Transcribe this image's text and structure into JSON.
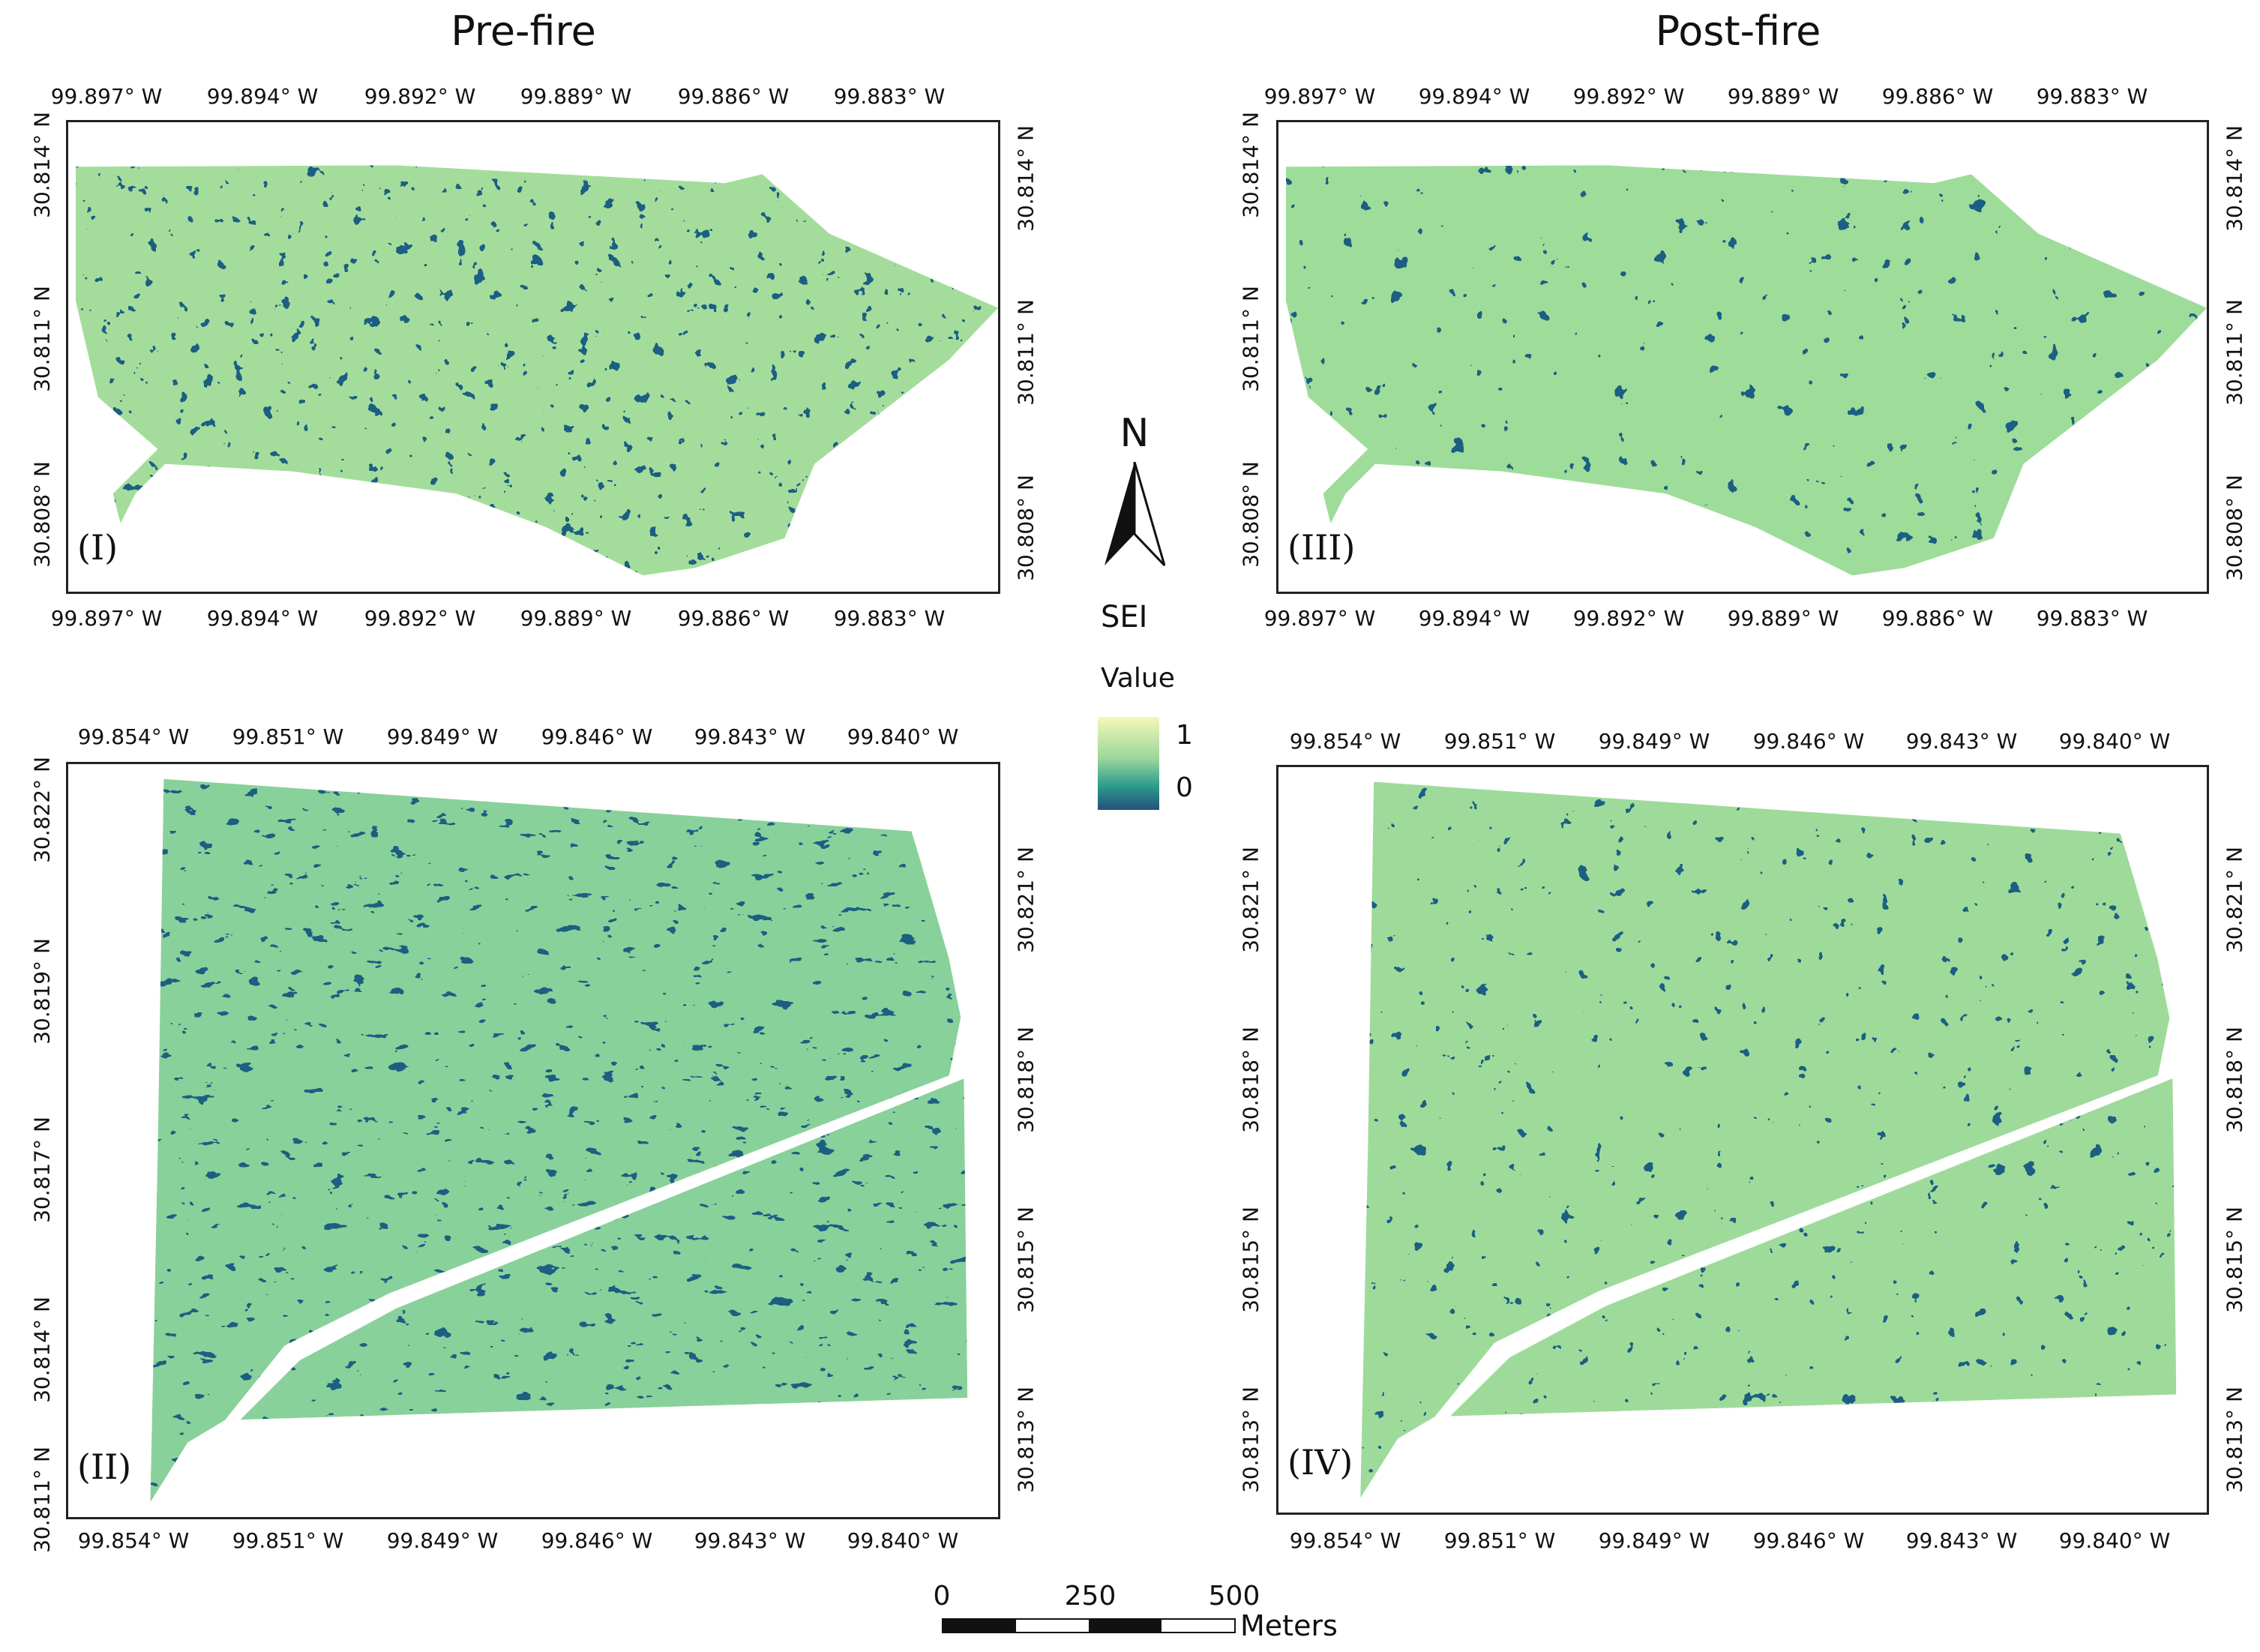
{
  "titles": {
    "left": "Pre-fire",
    "right": "Post-fire"
  },
  "colors": {
    "sei_high": "#f3f5b8",
    "sei_mid": "#7fcf90",
    "sei_low": "#22577a",
    "frame": "#222222"
  },
  "panels": [
    {
      "id": "I",
      "label": "(I)",
      "column": "pre-fire",
      "row": "top",
      "lon_ticks": [
        "99.897° W",
        "99.894° W",
        "99.892° W",
        "99.889° W",
        "99.886° W",
        "99.883° W"
      ],
      "lat_ticks": [
        "30.814° N",
        "30.811° N",
        "30.808° N"
      ]
    },
    {
      "id": "III",
      "label": "(III)",
      "column": "post-fire",
      "row": "top",
      "lon_ticks": [
        "99.897° W",
        "99.894° W",
        "99.892° W",
        "99.889° W",
        "99.886° W",
        "99.883° W"
      ],
      "lat_ticks": [
        "30.814° N",
        "30.811° N",
        "30.808° N"
      ]
    },
    {
      "id": "II",
      "label": "(II)",
      "column": "pre-fire",
      "row": "bottom",
      "lon_ticks": [
        "99.854° W",
        "99.851° W",
        "99.849° W",
        "99.846° W",
        "99.843° W",
        "99.840° W"
      ],
      "lat_left": [
        "30.822° N",
        "30.819° N",
        "30.817° N",
        "30.814° N",
        "30.811° N"
      ],
      "lat_right": [
        "30.821° N",
        "30.818° N",
        "30.815° N",
        "30.813° N"
      ]
    },
    {
      "id": "IV",
      "label": "(IV)",
      "column": "post-fire",
      "row": "bottom",
      "lon_ticks": [
        "99.854° W",
        "99.851° W",
        "99.849° W",
        "99.846° W",
        "99.843° W",
        "99.840° W"
      ],
      "lat_left": [
        "30.821° N",
        "30.818° N",
        "30.815° N",
        "30.813° N"
      ],
      "lat_right": [
        "30.821° N",
        "30.818° N",
        "30.815° N",
        "30.813° N"
      ]
    }
  ],
  "north_arrow": {
    "letter": "N"
  },
  "legend": {
    "title": "SEI",
    "subtitle": "Value",
    "max": "1",
    "min": "0"
  },
  "scale_bar": {
    "labels": [
      "0",
      "250",
      "500"
    ],
    "unit": "Meters"
  }
}
